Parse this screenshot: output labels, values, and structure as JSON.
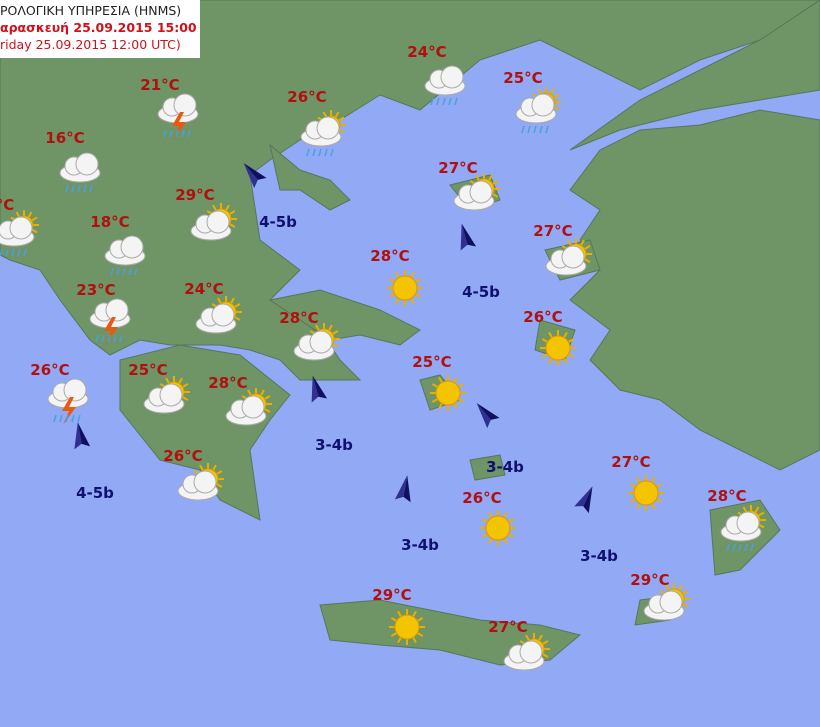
{
  "header": {
    "line1": "ΡΟΛΟΓΙΚΗ ΥΠΗΡΕΣΙΑ (HNMS)",
    "line2": "αρασκευή 25.09.2015 15:00",
    "line3": "riday 25.09.2015 12:00 UTC)"
  },
  "colors": {
    "sea": "#92aaf6",
    "land": "#6f9466",
    "temperature": "#b01010",
    "wind": "#101070"
  },
  "stations": [
    {
      "temp": "21°C",
      "icon": "thunder-icon"
    },
    {
      "temp": "16°C",
      "icon": "cloud-rain-icon"
    },
    {
      "temp": "°C",
      "icon": "sun-cloud-rain-icon"
    },
    {
      "temp": "18°C",
      "icon": "cloud-rain-icon"
    },
    {
      "temp": "29°C",
      "icon": "sun-cloud-icon"
    },
    {
      "temp": "26°C",
      "icon": "sun-cloud-rain-icon"
    },
    {
      "temp": "24°C",
      "icon": "cloud-rain-icon"
    },
    {
      "temp": "25°C",
      "icon": "sun-cloud-rain-icon"
    },
    {
      "temp": "27°C",
      "icon": "sun-cloud-icon"
    },
    {
      "temp": "27°C",
      "icon": "sun-cloud-icon"
    },
    {
      "temp": "28°C",
      "icon": "sun-icon"
    },
    {
      "temp": "23°C",
      "icon": "thunder-icon"
    },
    {
      "temp": "24°C",
      "icon": "sun-cloud-icon"
    },
    {
      "temp": "28°C",
      "icon": "sun-cloud-icon"
    },
    {
      "temp": "26°C",
      "icon": "sun-icon"
    },
    {
      "temp": "26°C",
      "icon": "thunder-icon"
    },
    {
      "temp": "25°C",
      "icon": "sun-cloud-icon"
    },
    {
      "temp": "28°C",
      "icon": "sun-cloud-icon"
    },
    {
      "temp": "25°C",
      "icon": "sun-icon"
    },
    {
      "temp": "26°C",
      "icon": "sun-cloud-icon"
    },
    {
      "temp": "27°C",
      "icon": "sun-icon"
    },
    {
      "temp": "26°C",
      "icon": "sun-icon"
    },
    {
      "temp": "28°C",
      "icon": "sun-cloud-rain-icon"
    },
    {
      "temp": "29°C",
      "icon": "sun-cloud-icon"
    },
    {
      "temp": "29°C",
      "icon": "sun-icon"
    },
    {
      "temp": "27°C",
      "icon": "sun-cloud-icon"
    }
  ],
  "winds": [
    {
      "label": "4-5b",
      "direction": "NW"
    },
    {
      "label": "4-5b",
      "direction": "N"
    },
    {
      "label": "3-4b",
      "direction": "N"
    },
    {
      "label": "3-4b",
      "direction": "NW"
    },
    {
      "label": "4-5b",
      "direction": "N"
    },
    {
      "label": "3-4b",
      "direction": "N"
    },
    {
      "label": "3-4b",
      "direction": "NE"
    }
  ]
}
